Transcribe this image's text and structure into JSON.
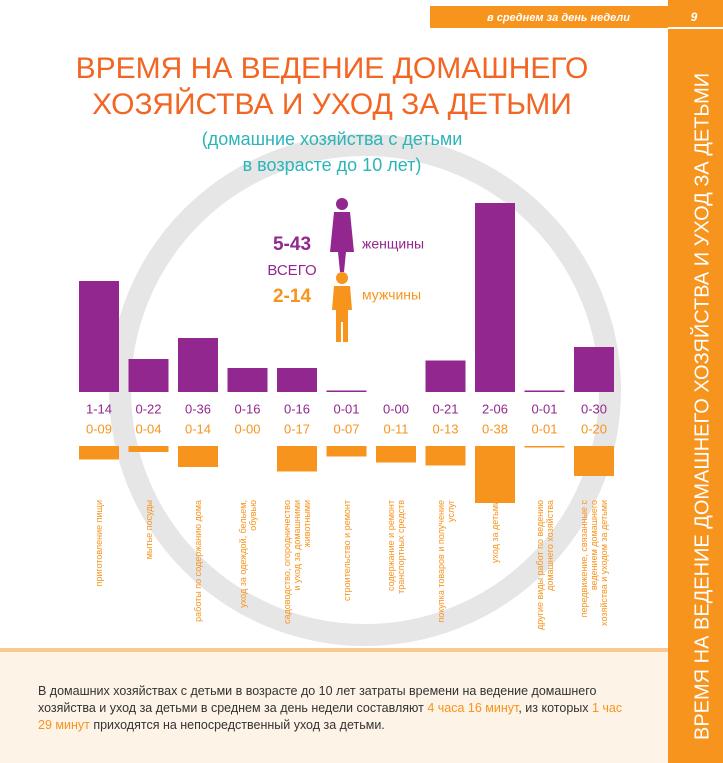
{
  "header": {
    "subtitle": "в среднем за день недели",
    "page": "9"
  },
  "side_title": "ВРЕМЯ НА ВЕДЕНИЕ ДОМАШНЕГО ХОЗЯЙСТВА И УХОД ЗА ДЕТЬМИ",
  "chart_data": {
    "type": "bar",
    "title_lines": [
      "ВРЕМЯ НА ВЕДЕНИЕ ДОМАШНЕГО",
      "ХОЗЯЙСТВА И УХОД ЗА ДЕТЬМИ"
    ],
    "subtitle_lines": [
      "(домашние хозяйства с детьми",
      "в возрасте до 10 лет)"
    ],
    "categories": [
      "приготовление пищи",
      "мытье посуды",
      "работы по содержанию дома",
      "уход за одеждой, бельем, обувью",
      "садоводство, огородничество и уход за домашними животными",
      "строительство и ремонт",
      "содержание и ремонт транспортных средств",
      "покупка товаров и получение услуг",
      "уход за детьми",
      "другие виды работ по ведению домашнего хозяйства",
      "передвижение, связанные с ведением домашнего хозяйства и уходом за детьми"
    ],
    "series": [
      {
        "name": "женщины",
        "color": "#92278f",
        "values": [
          74,
          22,
          36,
          16,
          16,
          1,
          0,
          21,
          126,
          1,
          30
        ],
        "value_labels": [
          "1-14",
          "0-22",
          "0-36",
          "0-16",
          "0-16",
          "0-01",
          "0-00",
          "0-21",
          "2-06",
          "0-01",
          "0-30"
        ]
      },
      {
        "name": "мужчины",
        "color": "#f7941d",
        "values": [
          9,
          4,
          14,
          0,
          17,
          7,
          11,
          13,
          38,
          1,
          20
        ],
        "value_labels": [
          "0-09",
          "0-04",
          "0-14",
          "0-00",
          "0-17",
          "0-07",
          "0-11",
          "0-13",
          "0-38",
          "0-01",
          "0-20"
        ]
      }
    ],
    "totals": {
      "label": "ВСЕГО",
      "values": [
        343,
        134
      ],
      "value_labels": [
        "5-43",
        "2-14"
      ]
    }
  },
  "footer": {
    "parts": [
      "В домашних хозяйствах с детьми в возрасте до 10 лет затраты времени на ведение домашнего хозяйства и уход за детьми в среднем за день недели составляют ",
      "4 часа 16 минут",
      ", из которых ",
      "1 час 29 минут",
      " приходятся на непосредственный уход за детьми."
    ]
  }
}
